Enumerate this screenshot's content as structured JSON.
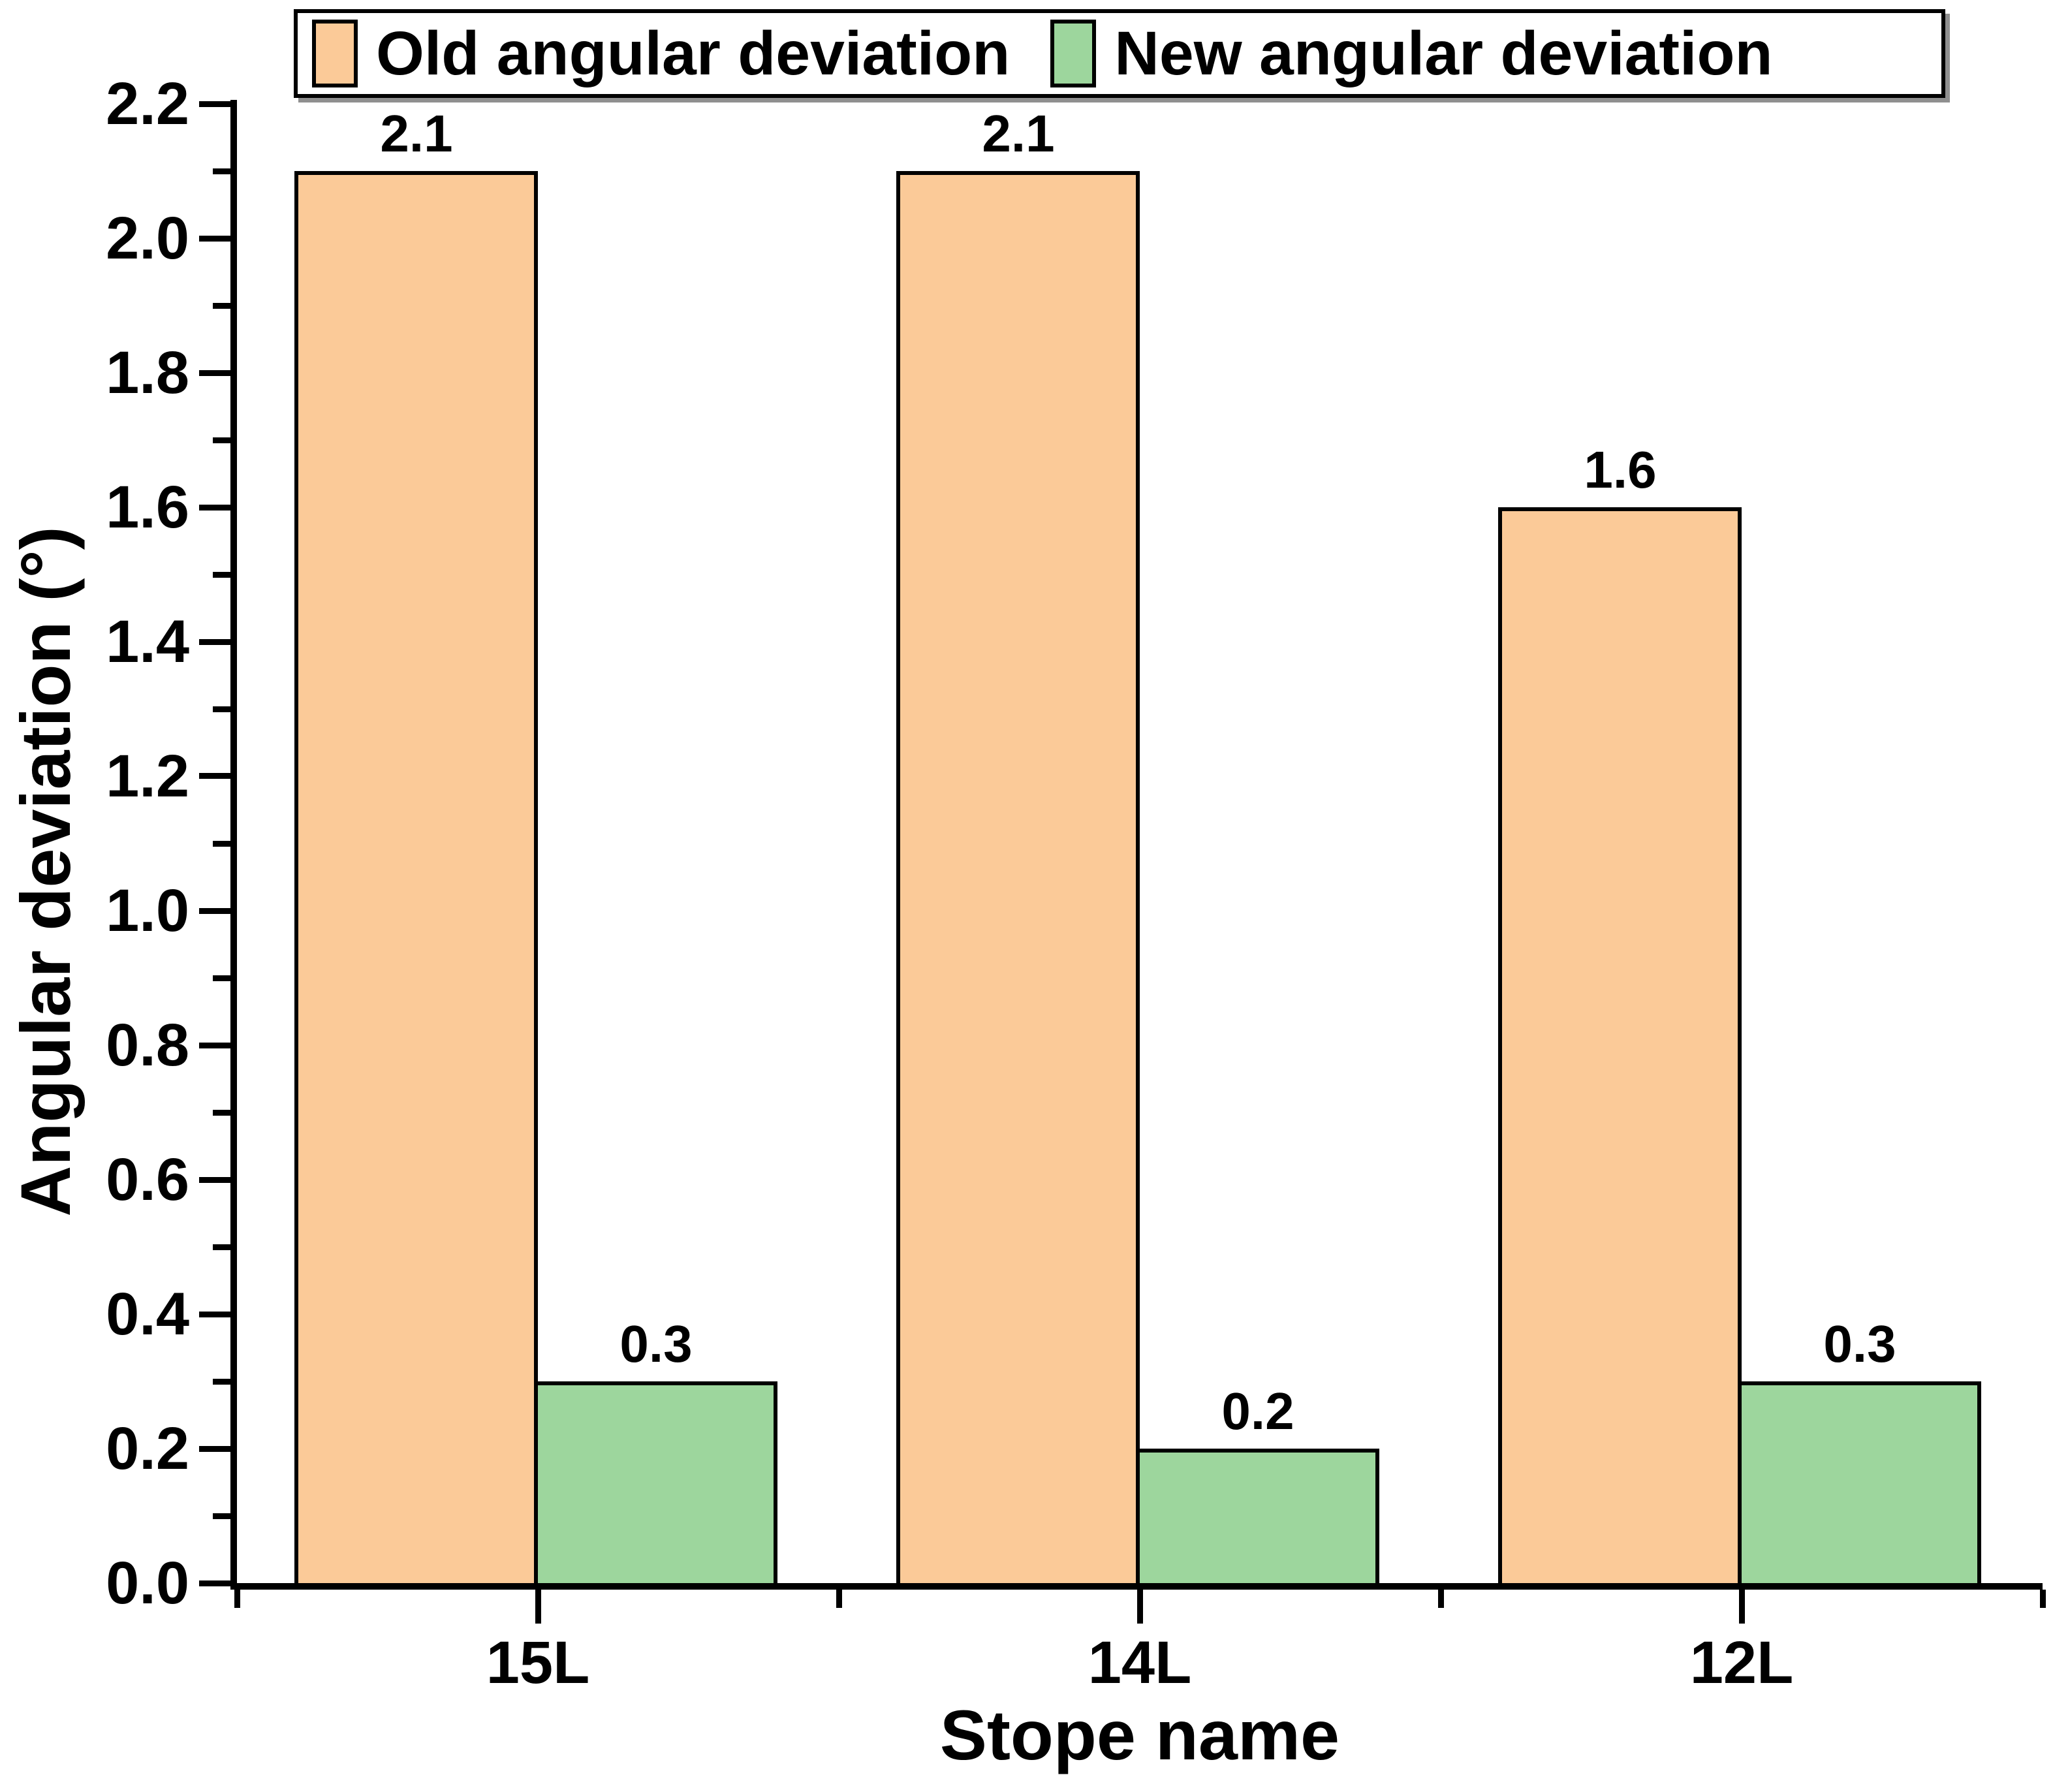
{
  "chart_data": {
    "type": "bar",
    "title": "",
    "categories": [
      "15L",
      "14L",
      "12L"
    ],
    "series": [
      {
        "name": "Old angular deviation",
        "color": "#FBCA98",
        "values": [
          2.1,
          2.1,
          1.6
        ]
      },
      {
        "name": "New angular deviation",
        "color": "#9DD69D",
        "values": [
          0.3,
          0.2,
          0.3
        ]
      }
    ],
    "bar_value_labels": [
      [
        "2.1",
        "2.1",
        "1.6"
      ],
      [
        "0.3",
        "0.2",
        "0.3"
      ]
    ],
    "xlabel": "Stope name",
    "ylabel": "Angular deviation (°)",
    "ylim": [
      0,
      2.2
    ],
    "y_major_step": 0.2,
    "y_minor_step": 0.1,
    "y_tick_labels": [
      "0.0",
      "0.2",
      "0.4",
      "0.6",
      "0.8",
      "1.0",
      "1.2",
      "1.4",
      "1.6",
      "1.8",
      "2.0",
      "2.2"
    ],
    "grid": false,
    "legend_position": "top",
    "axis_color": "#000000",
    "text_color": "#000000"
  }
}
